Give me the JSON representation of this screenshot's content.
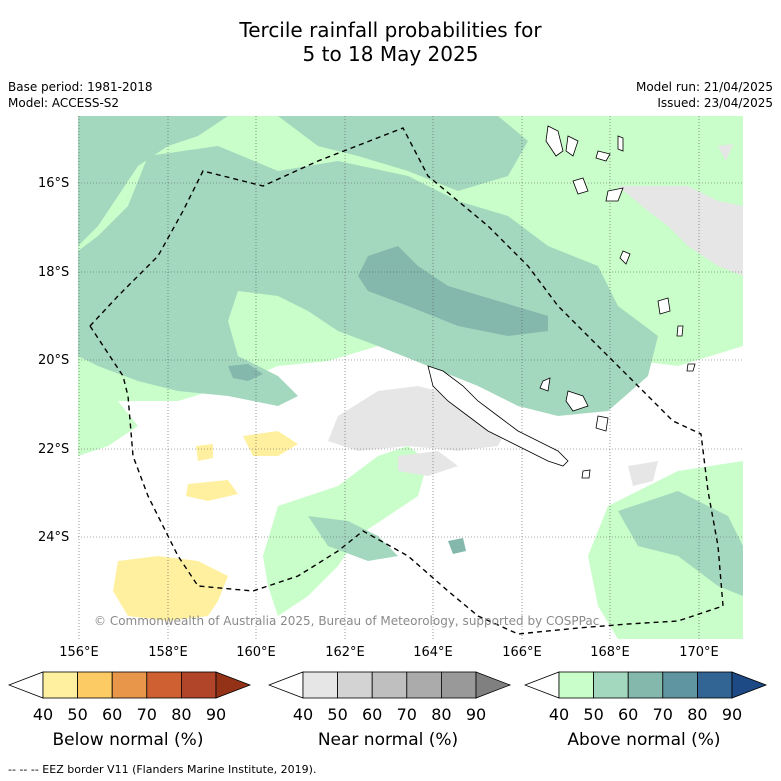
{
  "title": {
    "line1": "Tercile rainfall probabilities for",
    "line2": "5 to 18 May 2025"
  },
  "meta": {
    "base_period": "Base period: 1981-2018",
    "model": "Model: ACCESS-S2",
    "model_run": "Model run: 21/04/2025",
    "issued": "Issued: 23/04/2025"
  },
  "map": {
    "lat_labels": [
      "16°S",
      "18°S",
      "20°S",
      "22°S",
      "24°S"
    ],
    "lon_labels": [
      "156°E",
      "158°E",
      "160°E",
      "162°E",
      "164°E",
      "166°E",
      "168°E",
      "170°E"
    ],
    "copyright": "© Commonwealth of Australia 2025, Bureau of Meteorology, supported by COSPPac"
  },
  "legend": {
    "below": {
      "caption": "Below normal (%)",
      "ticks": [
        "40",
        "50",
        "60",
        "70",
        "80",
        "90"
      ],
      "colors": [
        "#ffffff",
        "#fff0a0",
        "#fdcb63",
        "#e8964a",
        "#cf6032",
        "#b0452a",
        "#943218"
      ]
    },
    "near": {
      "caption": "Near normal (%)",
      "ticks": [
        "40",
        "50",
        "60",
        "70",
        "80",
        "90"
      ],
      "colors": [
        "#ffffff",
        "#e6e6e6",
        "#d3d3d3",
        "#bfbfbf",
        "#ababab",
        "#999999",
        "#808080"
      ]
    },
    "above": {
      "caption": "Above normal (%)",
      "ticks": [
        "40",
        "50",
        "60",
        "70",
        "80",
        "90"
      ],
      "colors": [
        "#ffffff",
        "#c9fdc9",
        "#a3d8be",
        "#84b8ad",
        "#5e95a0",
        "#326594",
        "#1d4a85"
      ]
    }
  },
  "footer": "--  --  -- EEZ border V11 (Flanders Marine Institute, 2019)."
}
